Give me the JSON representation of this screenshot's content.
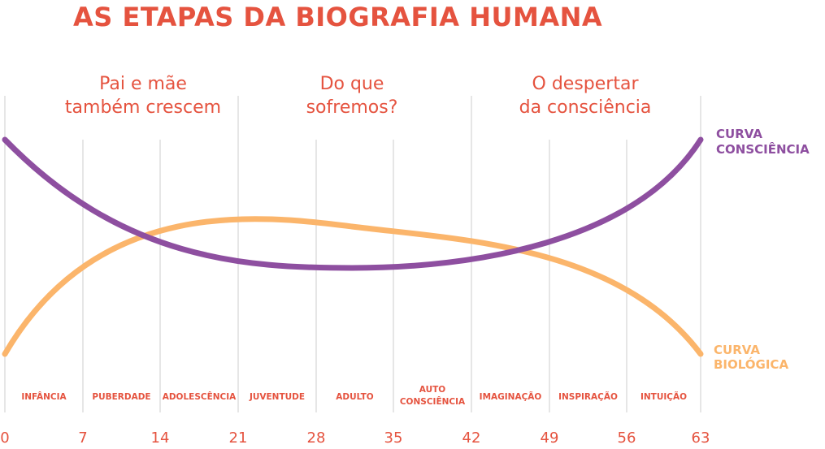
{
  "title": "AS ETAPAS DA BIOGRAFIA HUMANA",
  "sections": [
    {
      "lines": [
        "Pai e mãe",
        "também crescem"
      ]
    },
    {
      "lines": [
        "Do que",
        "sofremos?"
      ]
    },
    {
      "lines": [
        "O despertar",
        "da consciência"
      ]
    }
  ],
  "stages": [
    [
      "INFÂNCIA"
    ],
    [
      "PUBERDADE"
    ],
    [
      "ADOLESCÊNCIA"
    ],
    [
      "JUVENTUDE"
    ],
    [
      "ADULTO"
    ],
    [
      "AUTO",
      "CONSCIÊNCIA"
    ],
    [
      "IMAGINAÇÃO"
    ],
    [
      "INSPIRAÇÃO"
    ],
    [
      "INTUIÇÃO"
    ]
  ],
  "ticks": [
    "0",
    "7",
    "14",
    "21",
    "28",
    "35",
    "42",
    "49",
    "56",
    "63"
  ],
  "curves": {
    "consciencia": {
      "lines": [
        "CURVA",
        "CONSCIÊNCIA"
      ],
      "color": "#8e4fa0"
    },
    "biologica": {
      "lines": [
        "CURVA",
        "BIOLÓGICA"
      ],
      "color": "#fbb56b"
    }
  },
  "colors": {
    "accent": "#e5533f",
    "grid": "#cccccc"
  }
}
